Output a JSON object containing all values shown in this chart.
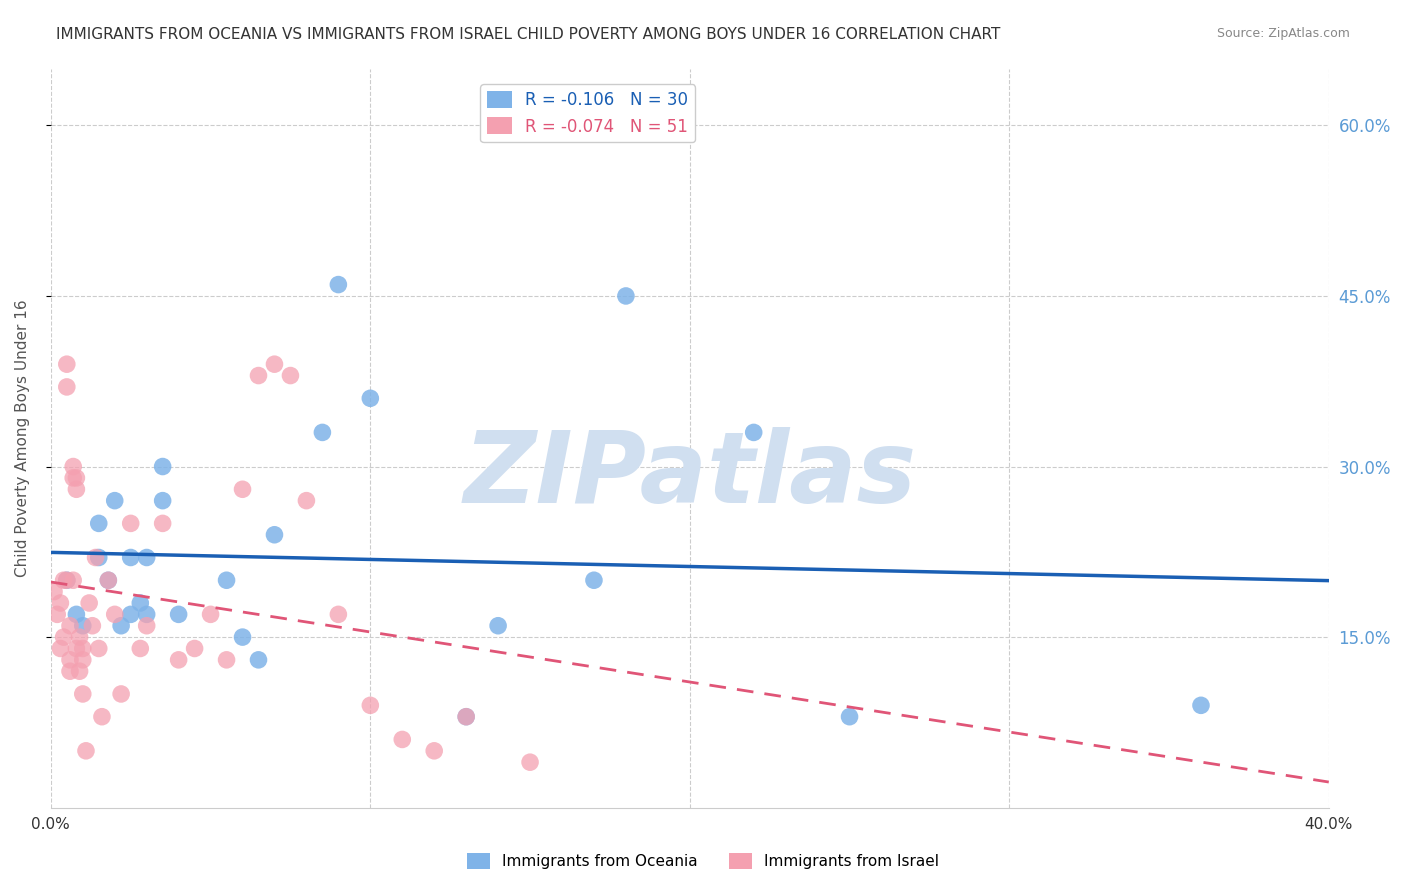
{
  "title": "IMMIGRANTS FROM OCEANIA VS IMMIGRANTS FROM ISRAEL CHILD POVERTY AMONG BOYS UNDER 16 CORRELATION CHART",
  "source": "Source: ZipAtlas.com",
  "ylabel": "Child Poverty Among Boys Under 16",
  "xlabel_bottom_left": "0.0%",
  "xlabel_bottom_right": "40.0%",
  "xmin": 0.0,
  "xmax": 0.4,
  "ymin": 0.0,
  "ymax": 0.65,
  "yticks": [
    0.15,
    0.3,
    0.45,
    0.6
  ],
  "ytick_labels": [
    "15.0%",
    "30.0%",
    "45.0%",
    "60.0%"
  ],
  "grid_color": "#cccccc",
  "background_color": "#ffffff",
  "oceania_color": "#7fb3e8",
  "israel_color": "#f4a0b0",
  "oceania_line_color": "#1a5fb4",
  "israel_line_color": "#e05577",
  "oceania_R": -0.106,
  "oceania_N": 30,
  "israel_R": -0.074,
  "israel_N": 51,
  "watermark": "ZIPatlas",
  "watermark_color": "#d0dff0",
  "oceania_x": [
    0.005,
    0.008,
    0.01,
    0.015,
    0.015,
    0.018,
    0.02,
    0.022,
    0.025,
    0.025,
    0.028,
    0.03,
    0.03,
    0.035,
    0.035,
    0.04,
    0.055,
    0.06,
    0.065,
    0.07,
    0.085,
    0.09,
    0.1,
    0.13,
    0.14,
    0.17,
    0.18,
    0.22,
    0.25,
    0.36
  ],
  "oceania_y": [
    0.2,
    0.17,
    0.16,
    0.25,
    0.22,
    0.2,
    0.27,
    0.16,
    0.22,
    0.17,
    0.18,
    0.22,
    0.17,
    0.3,
    0.27,
    0.17,
    0.2,
    0.15,
    0.13,
    0.24,
    0.33,
    0.46,
    0.36,
    0.08,
    0.16,
    0.2,
    0.45,
    0.33,
    0.08,
    0.09
  ],
  "israel_x": [
    0.001,
    0.002,
    0.003,
    0.003,
    0.004,
    0.004,
    0.005,
    0.005,
    0.005,
    0.006,
    0.006,
    0.006,
    0.007,
    0.007,
    0.007,
    0.008,
    0.008,
    0.008,
    0.009,
    0.009,
    0.01,
    0.01,
    0.01,
    0.011,
    0.012,
    0.013,
    0.014,
    0.015,
    0.016,
    0.018,
    0.02,
    0.022,
    0.025,
    0.028,
    0.03,
    0.035,
    0.04,
    0.045,
    0.05,
    0.055,
    0.06,
    0.065,
    0.07,
    0.075,
    0.08,
    0.09,
    0.1,
    0.11,
    0.12,
    0.13,
    0.15
  ],
  "israel_y": [
    0.19,
    0.17,
    0.14,
    0.18,
    0.15,
    0.2,
    0.39,
    0.37,
    0.2,
    0.13,
    0.12,
    0.16,
    0.3,
    0.29,
    0.2,
    0.29,
    0.28,
    0.14,
    0.15,
    0.12,
    0.14,
    0.13,
    0.1,
    0.05,
    0.18,
    0.16,
    0.22,
    0.14,
    0.08,
    0.2,
    0.17,
    0.1,
    0.25,
    0.14,
    0.16,
    0.25,
    0.13,
    0.14,
    0.17,
    0.13,
    0.28,
    0.38,
    0.39,
    0.38,
    0.27,
    0.17,
    0.09,
    0.06,
    0.05,
    0.08,
    0.04
  ]
}
